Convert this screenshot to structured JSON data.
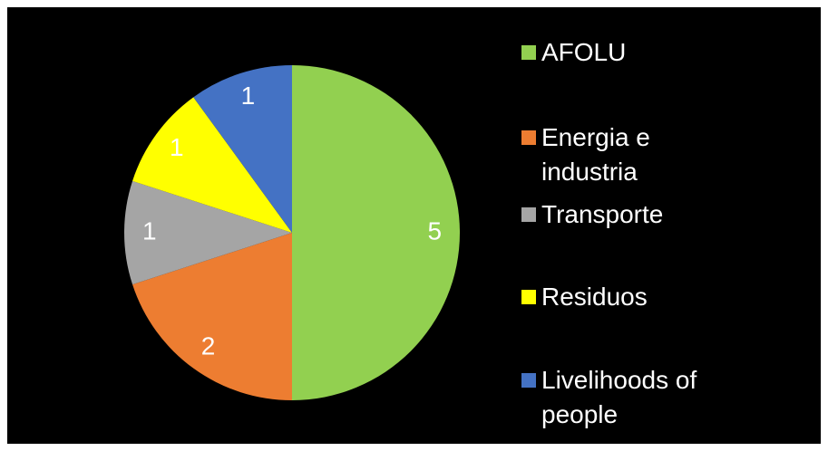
{
  "chart_data": {
    "type": "pie",
    "categories": [
      "AFOLU",
      "Energia e industria",
      "Transporte",
      "Residuos",
      "Livelihoods of people"
    ],
    "values": [
      5,
      2,
      1,
      1,
      1
    ],
    "colors": [
      "#92d050",
      "#ed7d31",
      "#a5a5a5",
      "#ffff00",
      "#4472c4"
    ],
    "legend": "right"
  }
}
